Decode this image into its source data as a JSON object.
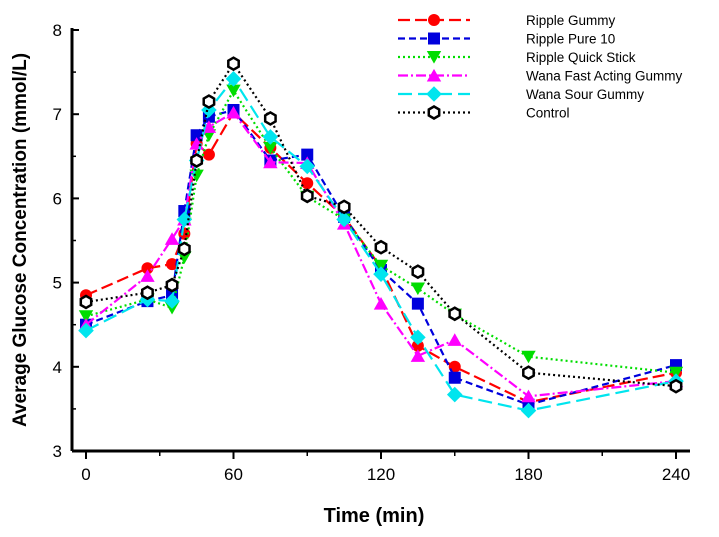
{
  "chart_data": {
    "type": "line",
    "xlabel": "Time (min)",
    "ylabel": "Average Glucose Concentration (mmol/L)",
    "xlim": [
      -5,
      245
    ],
    "ylim": [
      3,
      8
    ],
    "xticks": [
      0,
      60,
      120,
      180,
      240
    ],
    "yticks": [
      3,
      4,
      5,
      6,
      7,
      8
    ],
    "grid": false,
    "legend_position": "top-right",
    "x": [
      0,
      25,
      35,
      40,
      45,
      50,
      60,
      75,
      90,
      105,
      120,
      135,
      150,
      180,
      240
    ],
    "series": [
      {
        "name": "Ripple Gummy",
        "color": "#ff0000",
        "marker": "circle",
        "dash": "12,5",
        "values": [
          4.85,
          5.17,
          5.22,
          5.58,
          6.65,
          6.52,
          7.02,
          6.6,
          6.18,
          5.78,
          5.18,
          4.25,
          4.0,
          3.58,
          3.93
        ]
      },
      {
        "name": "Ripple Pure 10",
        "color": "#0000dd",
        "marker": "square",
        "dash": "7,4",
        "values": [
          4.5,
          4.78,
          4.85,
          5.85,
          6.75,
          6.97,
          7.05,
          6.45,
          6.52,
          5.78,
          5.15,
          4.75,
          3.87,
          3.55,
          4.02
        ]
      },
      {
        "name": "Ripple Quick Stick",
        "color": "#00dd00",
        "marker": "triangle-down",
        "dash": "2,3",
        "values": [
          4.6,
          4.8,
          4.7,
          5.3,
          6.27,
          6.75,
          7.28,
          6.6,
          6.02,
          5.75,
          5.2,
          4.93,
          4.62,
          4.12,
          3.93
        ]
      },
      {
        "name": "Wana Fast Acting Gummy",
        "color": "#ff00ff",
        "marker": "triangle-up",
        "dash": "10,3,2,3",
        "values": [
          4.5,
          5.08,
          5.52,
          5.75,
          6.65,
          6.85,
          7.02,
          6.43,
          6.42,
          5.7,
          4.75,
          4.13,
          4.32,
          3.65,
          3.83
        ]
      },
      {
        "name": "Wana Sour Gummy",
        "color": "#00e5ee",
        "marker": "diamond",
        "dash": "14,6",
        "values": [
          4.43,
          4.8,
          4.78,
          5.75,
          6.45,
          7.05,
          7.42,
          6.73,
          6.38,
          5.75,
          5.1,
          4.35,
          3.67,
          3.48,
          3.83
        ]
      },
      {
        "name": "Control",
        "color": "#000000",
        "marker": "hexagon-open",
        "dash": "2,3",
        "values": [
          4.77,
          4.88,
          4.97,
          5.4,
          6.45,
          7.15,
          7.6,
          6.95,
          6.03,
          5.9,
          5.42,
          5.13,
          4.63,
          3.93,
          3.77
        ]
      }
    ]
  }
}
